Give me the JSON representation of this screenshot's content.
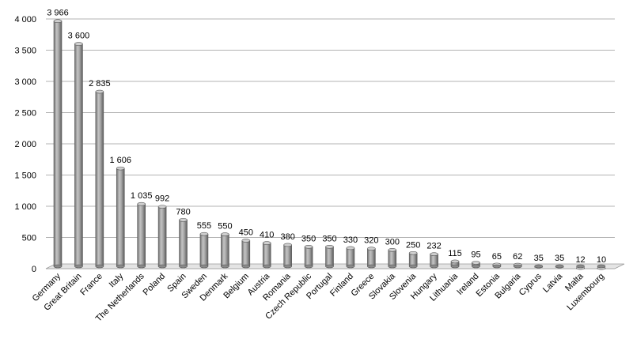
{
  "chart_data": {
    "type": "bar",
    "title": "",
    "xlabel": "",
    "ylabel": "",
    "ylim": [
      0,
      4000
    ],
    "yticks": [
      0,
      500,
      1000,
      1500,
      2000,
      2500,
      3000,
      3500,
      4000
    ],
    "ytick_labels": [
      "0",
      "500",
      "1 000",
      "1 500",
      "2 000",
      "2 500",
      "3 000",
      "3 500",
      "4 000"
    ],
    "grid": true,
    "legend": "none",
    "bar_color": "#9c9c9c",
    "categories": [
      "Germany",
      "Great Britain",
      "France",
      "Italy",
      "The Netherlands",
      "Poland",
      "Spain",
      "Sweden",
      "Denmark",
      "Belgium",
      "Austria",
      "Romania",
      "Czech Republic",
      "Portugal",
      "Finland",
      "Greece",
      "Slovakia",
      "Slovenia",
      "Hungary",
      "Lithuania",
      "Ireland",
      "Estonia",
      "Bulgaria",
      "Cyprus",
      "Latvia",
      "Malta",
      "Luxembourg"
    ],
    "values": [
      3966,
      3600,
      2835,
      1606,
      1035,
      992,
      780,
      555,
      550,
      450,
      410,
      380,
      350,
      350,
      330,
      320,
      300,
      250,
      232,
      115,
      95,
      65,
      62,
      35,
      35,
      12,
      10
    ],
    "value_labels": [
      "3 966",
      "3 600",
      "2 835",
      "1 606",
      "1 035",
      "992",
      "780",
      "555",
      "550",
      "450",
      "410",
      "380",
      "350",
      "350",
      "330",
      "320",
      "300",
      "250",
      "232",
      "115",
      "95",
      "65",
      "62",
      "35",
      "35",
      "12",
      "10"
    ]
  }
}
